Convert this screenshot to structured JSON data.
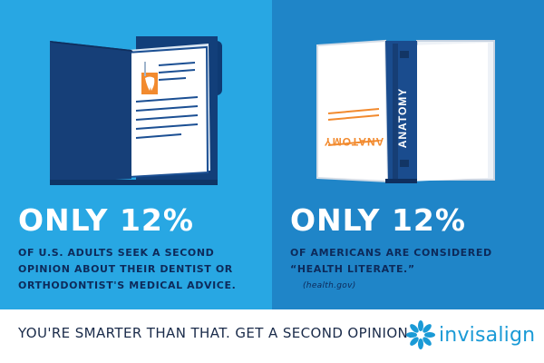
{
  "left_panel": {
    "stat": "ONLY 12%",
    "description": "OF U.S. ADULTS SEEK A SECOND OPINION ABOUT THEIR DENTIST OR ORTHODONTIST'S MEDICAL ADVICE.",
    "icon": "dental-folder-icon"
  },
  "right_panel": {
    "stat": "ONLY 12%",
    "description": "OF AMERICANS ARE CONSIDERED “HEALTH LITERATE.”",
    "source": "(health.gov)",
    "book_spine_label": "ANATOMY",
    "book_cover_label": "ANATOMY",
    "icon": "anatomy-book-icon"
  },
  "footer": {
    "tagline": "YOU'RE SMARTER THAN THAT. GET A SECOND OPINION.",
    "logo_text": "invisalign",
    "logo_icon": "snowflake-star-icon"
  },
  "colors": {
    "left_bg": "#28a7e3",
    "right_bg": "#1f85c8",
    "dark_text": "#0d2a5a",
    "brand": "#1a9ad6"
  }
}
